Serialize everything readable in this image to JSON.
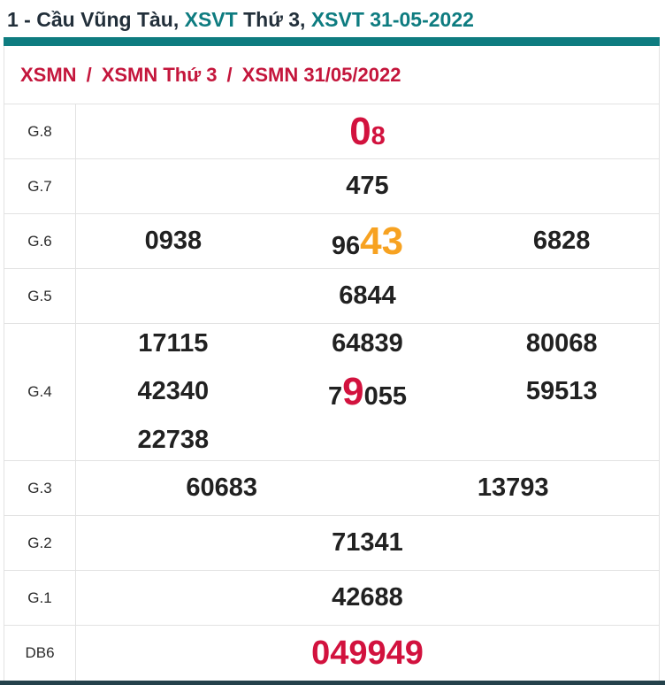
{
  "page_title": {
    "segments": [
      {
        "text": "1 - Cầu Vũng Tàu, ",
        "style": "dark"
      },
      {
        "text": "XSVT ",
        "style": "teal"
      },
      {
        "text": "Thứ 3, ",
        "style": "dark"
      },
      {
        "text": "XSVT 31-05-2022",
        "style": "teal"
      }
    ]
  },
  "breadcrumb": {
    "items": [
      "XSMN",
      "XSMN Thứ 3",
      "XSMN 31/05/2022"
    ],
    "separator": "/"
  },
  "colors": {
    "accent_teal": "#0e7c80",
    "breadcrumb_red": "#c4163c",
    "highlight_red": "#d2123e",
    "highlight_orange": "#f7a221",
    "bottom_bar": "#24414b"
  },
  "results_table": {
    "rows": [
      {
        "label": "G.8",
        "cols": 1,
        "tall": false,
        "values": [
          {
            "segments": [
              {
                "text": "0",
                "style": "red-xl"
              },
              {
                "text": "8",
                "style": "red"
              }
            ]
          }
        ]
      },
      {
        "label": "G.7",
        "cols": 1,
        "tall": false,
        "values": [
          {
            "segments": [
              {
                "text": "475",
                "style": "plain"
              }
            ]
          }
        ]
      },
      {
        "label": "G.6",
        "cols": 3,
        "tall": false,
        "values": [
          {
            "segments": [
              {
                "text": "0938",
                "style": "plain"
              }
            ]
          },
          {
            "segments": [
              {
                "text": "96",
                "style": "plain"
              },
              {
                "text": "43",
                "style": "orange-xl"
              }
            ]
          },
          {
            "segments": [
              {
                "text": "6828",
                "style": "plain"
              }
            ]
          }
        ]
      },
      {
        "label": "G.5",
        "cols": 1,
        "tall": false,
        "values": [
          {
            "segments": [
              {
                "text": "6844",
                "style": "plain"
              }
            ]
          }
        ]
      },
      {
        "label": "G.4",
        "cols": 3,
        "tall": true,
        "values": [
          {
            "segments": [
              {
                "text": "17115",
                "style": "plain"
              }
            ]
          },
          {
            "segments": [
              {
                "text": "64839",
                "style": "plain"
              }
            ]
          },
          {
            "segments": [
              {
                "text": "80068",
                "style": "plain"
              }
            ]
          },
          {
            "segments": [
              {
                "text": "42340",
                "style": "plain"
              }
            ]
          },
          {
            "segments": [
              {
                "text": "7",
                "style": "plain"
              },
              {
                "text": "9",
                "style": "red-xl"
              },
              {
                "text": "055",
                "style": "plain"
              }
            ]
          },
          {
            "segments": [
              {
                "text": "59513",
                "style": "plain"
              }
            ]
          },
          {
            "segments": [
              {
                "text": "22738",
                "style": "plain"
              }
            ]
          }
        ]
      },
      {
        "label": "G.3",
        "cols": 2,
        "tall": false,
        "values": [
          {
            "segments": [
              {
                "text": "60683",
                "style": "plain"
              }
            ]
          },
          {
            "segments": [
              {
                "text": "13793",
                "style": "plain"
              }
            ]
          }
        ]
      },
      {
        "label": "G.2",
        "cols": 1,
        "tall": false,
        "values": [
          {
            "segments": [
              {
                "text": "71341",
                "style": "plain"
              }
            ]
          }
        ]
      },
      {
        "label": "G.1",
        "cols": 1,
        "tall": false,
        "values": [
          {
            "segments": [
              {
                "text": "42688",
                "style": "plain"
              }
            ]
          }
        ]
      },
      {
        "label": "DB6",
        "cols": 1,
        "tall": false,
        "values": [
          {
            "segments": [
              {
                "text": "049949",
                "style": "db"
              }
            ]
          }
        ]
      }
    ]
  }
}
